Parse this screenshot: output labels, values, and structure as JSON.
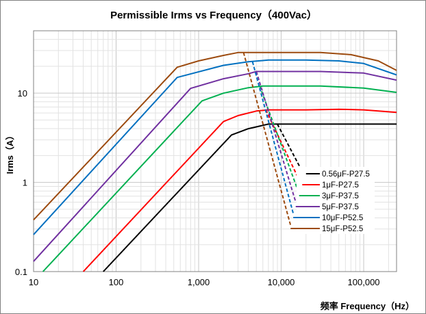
{
  "chart_data": {
    "type": "line",
    "title": "Permissible Irms vs Frequency（400Vac）",
    "xlabel": "频率 Frequency（Hz）",
    "ylabel": "Irms（A）",
    "x_scale": "log",
    "y_scale": "log",
    "xlim": [
      10,
      250000
    ],
    "ylim": [
      0.1,
      50
    ],
    "grid": true,
    "legend_position": "right-center, inside plot",
    "x_ticks": [
      {
        "value": 10,
        "label": "10"
      },
      {
        "value": 100,
        "label": "100"
      },
      {
        "value": 1000,
        "label": "1,000"
      },
      {
        "value": 10000,
        "label": "10,000"
      },
      {
        "value": 100000,
        "label": "100,000"
      }
    ],
    "y_ticks": [
      {
        "value": 0.1,
        "label": "0.1"
      },
      {
        "value": 1,
        "label": "1"
      },
      {
        "value": 10,
        "label": "10"
      }
    ],
    "series": [
      {
        "name": "0.56μF-P27.5",
        "color": "#000000",
        "x": [
          70,
          2500,
          4000,
          7000,
          10000,
          250000
        ],
        "y": [
          0.1,
          3.4,
          4.0,
          4.5,
          4.5,
          4.5
        ],
        "dashed": {
          "x": [
            9000,
            20000
          ],
          "y": [
            4.5,
            1.1
          ]
        }
      },
      {
        "name": "1μF-P27.5",
        "color": "#ff0000",
        "x": [
          40,
          2000,
          3000,
          5000,
          7000,
          20000,
          50000,
          100000,
          250000
        ],
        "y": [
          0.1,
          4.8,
          5.6,
          6.3,
          6.5,
          6.5,
          6.6,
          6.5,
          6.1
        ],
        "dashed": {
          "x": [
            6500,
            18000
          ],
          "y": [
            6.5,
            0.9
          ]
        }
      },
      {
        "name": "3μF-P37.5",
        "color": "#00b050",
        "x": [
          13,
          1100,
          2000,
          4000,
          6000,
          10000,
          30000,
          100000,
          250000
        ],
        "y": [
          0.1,
          8.2,
          10.0,
          11.5,
          12.0,
          12.0,
          12.0,
          11.4,
          10.2
        ],
        "dashed": {
          "x": [
            5500,
            16500
          ],
          "y": [
            12.0,
            0.75
          ]
        }
      },
      {
        "name": "5μF-P37.5",
        "color": "#7030a0",
        "x": [
          10,
          800,
          2000,
          4000,
          5000,
          10000,
          30000,
          100000,
          250000
        ],
        "y": [
          0.13,
          11.3,
          14.5,
          16.5,
          17.5,
          17.5,
          17.5,
          16.8,
          14.0
        ],
        "dashed": {
          "x": [
            5000,
            15000
          ],
          "y": [
            17.5,
            0.6
          ]
        }
      },
      {
        "name": "10μF-P52.5",
        "color": "#0070c0",
        "x": [
          10,
          550,
          2000,
          4000,
          7000,
          20000,
          50000,
          100000,
          250000
        ],
        "y": [
          0.26,
          15.0,
          20.5,
          22.5,
          23.5,
          23.5,
          23.0,
          21.5,
          16.0
        ],
        "dashed": {
          "x": [
            4500,
            14000
          ],
          "y": [
            22.5,
            0.45
          ]
        }
      },
      {
        "name": "15μF-P52.5",
        "color": "#9c4a0e",
        "x": [
          10,
          550,
          1000,
          2000,
          3000,
          10000,
          30000,
          70000,
          150000,
          250000
        ],
        "y": [
          0.38,
          19.5,
          23.0,
          26.5,
          28.5,
          28.5,
          28.5,
          27.0,
          23.0,
          18.0
        ],
        "dashed": {
          "x": [
            3500,
            13000
          ],
          "y": [
            28.5,
            0.33
          ]
        }
      }
    ]
  }
}
